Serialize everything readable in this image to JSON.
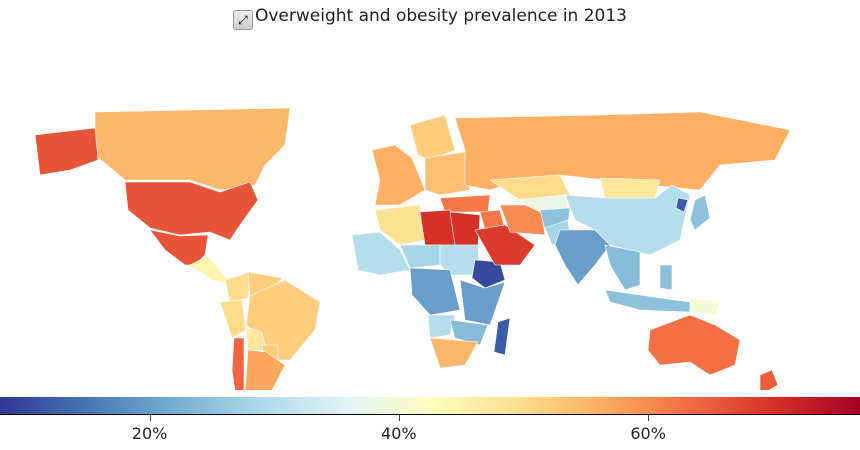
{
  "title": "Overweight and obesity prevalence in 2013",
  "expand_icon": "expand-arrows-icon",
  "chart_data": {
    "type": "choropleth",
    "title": "Overweight and obesity prevalence in 2013",
    "colorscale": [
      "#313695",
      "#4575b4",
      "#74add1",
      "#abd9e9",
      "#e0f3f8",
      "#ffffbf",
      "#fee090",
      "#fdae61",
      "#f46d43",
      "#d73027",
      "#a50026"
    ],
    "range": [
      8,
      77
    ],
    "ticks": [
      {
        "value": 20,
        "label": "20%"
      },
      {
        "value": 40,
        "label": "40%"
      },
      {
        "value": 60,
        "label": "60%"
      }
    ],
    "values": {
      "Canada": 55,
      "Alaska (USA)": 66,
      "USA": 66,
      "Mexico": 66,
      "Central America": 45,
      "Colombia": 50,
      "Venezuela": 52,
      "Brazil": 52,
      "Peru": 50,
      "Bolivia": 48,
      "Argentina": 57,
      "Chile": 64,
      "Paraguay": 52,
      "Western Europe": 56,
      "Eastern Europe": 54,
      "Scandinavia": 52,
      "Russia": 56,
      "Turkey": 62,
      "Algeria": 49,
      "Libya": 70,
      "Egypt": 70,
      "West Africa": 30,
      "Sahel": 28,
      "Sudan": 30,
      "Central Africa": 20,
      "Ethiopia": 10,
      "East Africa": 20,
      "Angola": 30,
      "Southern Africa": 24,
      "South Africa": 55,
      "Madagascar": 12,
      "Saudi Arabia": 69,
      "Iran": 60,
      "Iraq": 62,
      "Kazakhstan": 50,
      "Central Asia": 38,
      "Afghanistan": 25,
      "Pakistan": 28,
      "Mongolia": 48,
      "China": 30,
      "India": 20,
      "Southeast Asia": 24,
      "Indonesia": 25,
      "Philippines": 25,
      "Japan": 25,
      "North Korea": 12,
      "Australia": 63,
      "New Zealand": 65,
      "Papua New Guinea": 40
    }
  }
}
